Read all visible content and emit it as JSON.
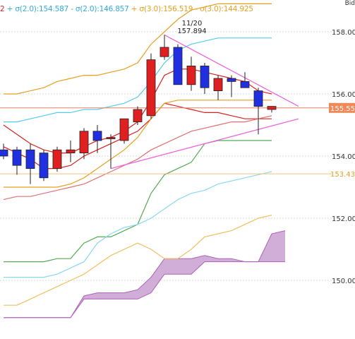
{
  "header": {
    "legend": [
      {
        "text": "2",
        "color": "#d92020"
      },
      {
        "text": " + σ(2.0):154.587",
        "color": "#33aadd"
      },
      {
        "text": " - σ(2.0):146.857",
        "color": "#33aadd"
      },
      {
        "text": " + σ(3.0):156.519",
        "color": "#e5a020"
      },
      {
        "text": " - σ(3.0):144.925",
        "color": "#e5a020"
      }
    ],
    "corner_text": "Bid"
  },
  "annotation": {
    "date": "11/20",
    "value": "157.894"
  },
  "price_labels": {
    "current": {
      "text": "155.55",
      "value": 155.55
    },
    "support": {
      "text": "153.43",
      "value": 153.43
    }
  },
  "chart_data": {
    "type": "candlestick",
    "y_range": [
      148.8,
      159.0
    ],
    "y_ticks": [
      {
        "value": 158,
        "label": "158.000"
      },
      {
        "value": 156,
        "label": "156.000"
      },
      {
        "value": 154,
        "label": "154.000"
      },
      {
        "value": 152,
        "label": "152.000"
      },
      {
        "value": 150,
        "label": "150.000"
      }
    ],
    "candles": [
      {
        "o": 154.2,
        "h": 154.4,
        "l": 153.9,
        "c": 154.0
      },
      {
        "o": 154.2,
        "h": 154.3,
        "l": 153.4,
        "c": 153.7
      },
      {
        "o": 154.2,
        "h": 154.4,
        "l": 153.1,
        "c": 153.6
      },
      {
        "o": 154.1,
        "h": 154.2,
        "l": 153.2,
        "c": 153.3
      },
      {
        "o": 153.6,
        "h": 154.3,
        "l": 153.5,
        "c": 154.2
      },
      {
        "o": 154.1,
        "h": 154.5,
        "l": 153.8,
        "c": 154.2
      },
      {
        "o": 154.1,
        "h": 154.9,
        "l": 153.9,
        "c": 154.8
      },
      {
        "o": 154.8,
        "h": 155.0,
        "l": 154.1,
        "c": 154.5
      },
      {
        "o": 154.6,
        "h": 154.7,
        "l": 153.6,
        "c": 154.6
      },
      {
        "o": 154.5,
        "h": 155.2,
        "l": 154.4,
        "c": 155.2
      },
      {
        "o": 155.1,
        "h": 155.6,
        "l": 155.0,
        "c": 155.5
      },
      {
        "o": 155.3,
        "h": 157.3,
        "l": 155.2,
        "c": 157.1
      },
      {
        "o": 157.2,
        "h": 157.9,
        "l": 157.1,
        "c": 157.5
      },
      {
        "o": 157.5,
        "h": 157.6,
        "l": 156.3,
        "c": 156.3
      },
      {
        "o": 156.3,
        "h": 157.2,
        "l": 156.1,
        "c": 156.9
      },
      {
        "o": 156.9,
        "h": 157.0,
        "l": 156.0,
        "c": 156.2
      },
      {
        "o": 156.1,
        "h": 156.6,
        "l": 155.8,
        "c": 156.5
      },
      {
        "o": 156.5,
        "h": 156.6,
        "l": 155.9,
        "c": 156.4
      },
      {
        "o": 156.4,
        "h": 156.7,
        "l": 156.2,
        "c": 156.2
      },
      {
        "o": 156.1,
        "h": 156.2,
        "l": 154.7,
        "c": 155.6
      },
      {
        "o": 155.5,
        "h": 155.6,
        "l": 155.4,
        "c": 155.6
      }
    ],
    "lines": [
      {
        "color": "#e5a020",
        "values": [
          156.0,
          156.0,
          156.1,
          156.2,
          156.4,
          156.5,
          156.6,
          156.6,
          156.7,
          156.8,
          157.0,
          157.6,
          158.0,
          158.4,
          158.7,
          158.8,
          158.9,
          158.9,
          158.9,
          158.9,
          158.9
        ]
      },
      {
        "color": "#55ccee",
        "values": [
          155.1,
          155.1,
          155.2,
          155.3,
          155.4,
          155.4,
          155.5,
          155.5,
          155.6,
          155.7,
          155.9,
          156.4,
          157.0,
          157.4,
          157.6,
          157.7,
          157.8,
          157.8,
          157.8,
          157.8,
          157.8
        ]
      },
      {
        "color": "#d92020",
        "values": [
          155.0,
          154.7,
          154.4,
          154.2,
          154.1,
          154.1,
          154.3,
          154.5,
          154.6,
          154.8,
          155.1,
          155.8,
          156.6,
          156.8,
          156.8,
          156.7,
          156.6,
          156.5,
          156.4,
          156.1,
          156.0
        ]
      },
      {
        "color": "#d92020",
        "values": [
          154.3,
          154.1,
          153.9,
          153.6,
          153.6,
          153.7,
          154.0,
          154.2,
          154.4,
          154.6,
          154.8,
          155.2,
          155.7,
          155.6,
          155.5,
          155.4,
          155.4,
          155.3,
          155.2,
          155.2,
          155.2
        ]
      },
      {
        "color": "#e5a020",
        "values": [
          153.0,
          153.0,
          153.0,
          153.0,
          153.0,
          153.1,
          153.3,
          153.6,
          153.9,
          154.2,
          154.6,
          155.2,
          155.7,
          155.8,
          155.8,
          155.8,
          155.8,
          155.8,
          155.8,
          155.8,
          155.8
        ]
      },
      {
        "color": "#e07070",
        "values": [
          152.6,
          152.7,
          152.7,
          152.8,
          152.9,
          153.0,
          153.1,
          153.3,
          153.5,
          153.7,
          153.9,
          154.2,
          154.4,
          154.6,
          154.8,
          154.9,
          155.0,
          155.1,
          155.1,
          155.2,
          155.3
        ]
      },
      {
        "color": "#55aa55",
        "values": [
          150.6,
          150.6,
          150.6,
          150.6,
          150.7,
          150.7,
          151.2,
          151.4,
          151.4,
          151.6,
          151.8,
          152.8,
          153.4,
          153.6,
          153.8,
          154.4,
          154.5,
          154.5,
          154.5,
          154.5,
          154.5
        ]
      },
      {
        "color": "#88d8f0",
        "values": [
          150.1,
          150.1,
          150.1,
          150.1,
          150.2,
          150.4,
          150.6,
          151.2,
          151.5,
          151.7,
          151.8,
          152.0,
          152.3,
          152.6,
          152.8,
          152.9,
          153.1,
          153.2,
          153.3,
          153.4,
          153.5
        ]
      },
      {
        "color": "#f0c060",
        "values": [
          149.2,
          149.2,
          149.4,
          149.6,
          149.8,
          150.0,
          150.2,
          150.5,
          150.8,
          151.0,
          151.2,
          151.0,
          150.7,
          150.7,
          151.0,
          151.4,
          151.5,
          151.6,
          151.8,
          152.0,
          152.1
        ]
      }
    ],
    "cloud": {
      "color": "#c8a0d0",
      "span_a": [
        148.8,
        148.8,
        148.8,
        148.8,
        148.8,
        148.8,
        149.5,
        149.6,
        149.6,
        149.6,
        149.7,
        150.1,
        150.7,
        150.7,
        150.7,
        150.8,
        150.7,
        150.7,
        150.6,
        150.6,
        151.5,
        151.6
      ],
      "span_b": [
        148.8,
        148.8,
        148.8,
        148.8,
        148.8,
        148.8,
        149.4,
        149.4,
        149.4,
        149.4,
        149.4,
        149.6,
        150.2,
        150.2,
        150.2,
        150.6,
        150.6,
        150.6,
        150.6,
        150.6,
        150.6,
        150.6
      ]
    },
    "trendlines": [
      {
        "color": "#ee66dd",
        "from": {
          "i": 12,
          "v": 157.9
        },
        "to": {
          "i": 22,
          "v": 155.6
        }
      },
      {
        "color": "#ee66dd",
        "from": {
          "i": 8,
          "v": 153.6
        },
        "to": {
          "i": 22,
          "v": 155.2
        }
      }
    ],
    "hlines": [
      {
        "color": "#e08060",
        "value": 155.55
      },
      {
        "color": "#f0c080",
        "value": 153.43
      }
    ]
  }
}
